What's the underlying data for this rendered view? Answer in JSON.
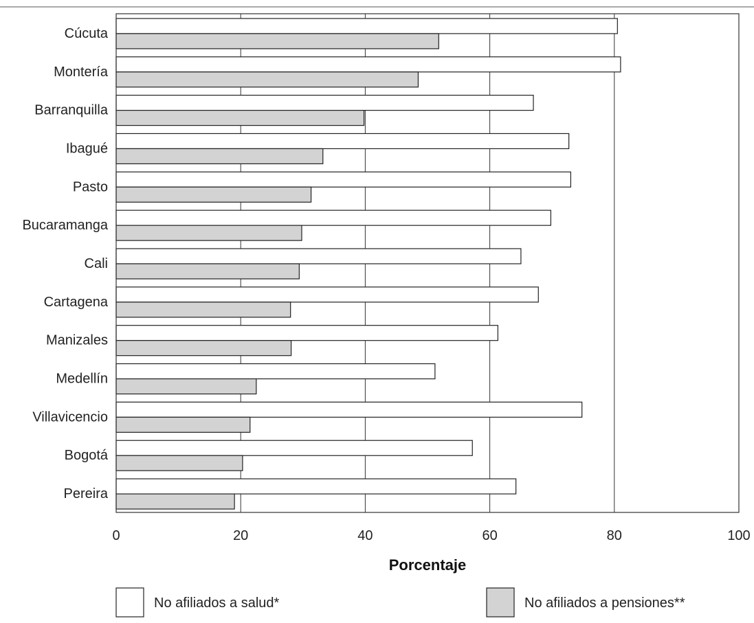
{
  "chart_data": {
    "type": "bar",
    "orientation": "horizontal",
    "categories": [
      "Cúcuta",
      "Montería",
      "Barranquilla",
      "Ibagué",
      "Pasto",
      "Bucaramanga",
      "Cali",
      "Cartagena",
      "Manizales",
      "Medellín",
      "Villavicencio",
      "Bogotá",
      "Pereira"
    ],
    "series": [
      {
        "name": "No afiliados a salud*",
        "values": [
          80.5,
          81.0,
          67.0,
          72.7,
          73.0,
          69.8,
          65.0,
          67.8,
          61.3,
          51.2,
          74.8,
          57.2,
          64.2
        ],
        "color": "#ffffff"
      },
      {
        "name": "No afiliados a pensiones**",
        "values": [
          51.8,
          48.5,
          39.8,
          33.2,
          31.3,
          29.8,
          29.4,
          28.0,
          28.1,
          22.5,
          21.5,
          20.3,
          19.0
        ],
        "color": "#d3d3d3"
      }
    ],
    "xlabel": "Porcentaje",
    "ylabel": "",
    "xlim": [
      0,
      100
    ],
    "xticks": [
      "0",
      "20",
      "40",
      "60",
      "80",
      "100"
    ],
    "grid": "vertical",
    "legend": "bottom"
  }
}
